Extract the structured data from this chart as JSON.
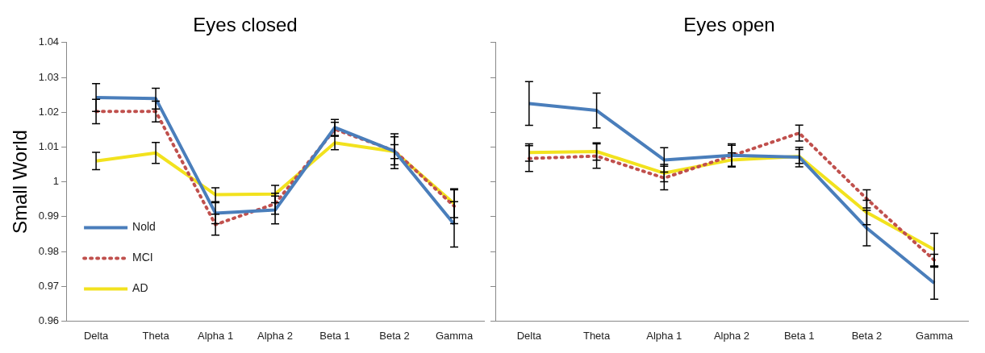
{
  "chart_data": [
    {
      "type": "line",
      "title": "Eyes closed",
      "ylabel": "Small World",
      "categories": [
        "Delta",
        "Theta",
        "Alpha 1",
        "Alpha 2",
        "Beta 1",
        "Beta 2",
        "Gamma"
      ],
      "ylim": [
        0.96,
        1.04
      ],
      "yticks": [
        {
          "value": 0.96,
          "label": "0.96"
        },
        {
          "value": 0.97,
          "label": "0.97"
        },
        {
          "value": 0.98,
          "label": "0.98"
        },
        {
          "value": 0.99,
          "label": "0.99"
        },
        {
          "value": 1,
          "label": "1"
        },
        {
          "value": 1.01,
          "label": "1.01"
        },
        {
          "value": 1.02,
          "label": "1.02"
        },
        {
          "value": 1.03,
          "label": "1.03"
        },
        {
          "value": 1.04,
          "label": "1.04"
        }
      ],
      "grid": false,
      "legend": "bottom left",
      "marker": "none",
      "series": [
        {
          "name": "Nold",
          "color": "#4a7ebb",
          "line_style": "solid",
          "values": [
            1.0242,
            1.0239,
            0.991,
            0.9919,
            1.0156,
            1.0088,
            0.9878
          ],
          "errors": [
            0.004,
            0.003,
            0.003,
            0.004,
            0.0023,
            0.005,
            0.0065
          ]
        },
        {
          "name": "MCI",
          "color": "#c0504d",
          "line_style": "dotted",
          "values": [
            1.0202,
            1.0202,
            0.9877,
            0.9937,
            1.0151,
            1.0089,
            0.993
          ],
          "errors": [
            0.0035,
            0.003,
            0.003,
            0.003,
            0.002,
            0.004,
            0.005
          ]
        },
        {
          "name": "AD",
          "color": "#f2e21e",
          "line_style": "solid",
          "values": [
            1.006,
            1.0083,
            0.9963,
            0.9965,
            1.0112,
            1.0087,
            0.9937
          ],
          "errors": [
            0.0025,
            0.003,
            0.002,
            0.0025,
            0.002,
            0.002,
            0.004
          ]
        }
      ]
    },
    {
      "type": "line",
      "title": "Eyes open",
      "categories": [
        "Delta",
        "Theta",
        "Alpha 1",
        "Alpha 2",
        "Beta 1",
        "Beta 2",
        "Gamma"
      ],
      "ylim": [
        0.96,
        1.04
      ],
      "yticks": [
        0.96,
        0.97,
        0.98,
        0.99,
        1,
        1.01,
        1.02,
        1.03,
        1.04
      ],
      "tick_labels": "x",
      "grid": false,
      "legend": false,
      "marker": "none",
      "series": [
        {
          "color": "#4a7ebb",
          "line_style": "solid",
          "values": [
            1.0225,
            1.0205,
            1.0063,
            1.0076,
            1.0071,
            0.9867,
            0.9709
          ],
          "errors": [
            0.0063,
            0.005,
            0.0035,
            0.0033,
            0.0028,
            0.0051,
            0.0046
          ]
        },
        {
          "color": "#c0504d",
          "line_style": "dotted",
          "values": [
            1.0067,
            1.0074,
            1.0011,
            1.0075,
            1.014,
            0.9951,
            0.9775
          ],
          "errors": [
            0.0037,
            0.0035,
            0.0034,
            0.003,
            0.0023,
            0.0026,
            0.0017
          ]
        },
        {
          "color": "#f2e21e",
          "line_style": "solid",
          "values": [
            1.0084,
            1.0087,
            1.0025,
            1.0063,
            1.0073,
            0.9912,
            0.9805
          ],
          "errors": [
            0.0025,
            0.0025,
            0.0025,
            0.002,
            0.002,
            0.0035,
            0.0047
          ]
        }
      ]
    }
  ]
}
